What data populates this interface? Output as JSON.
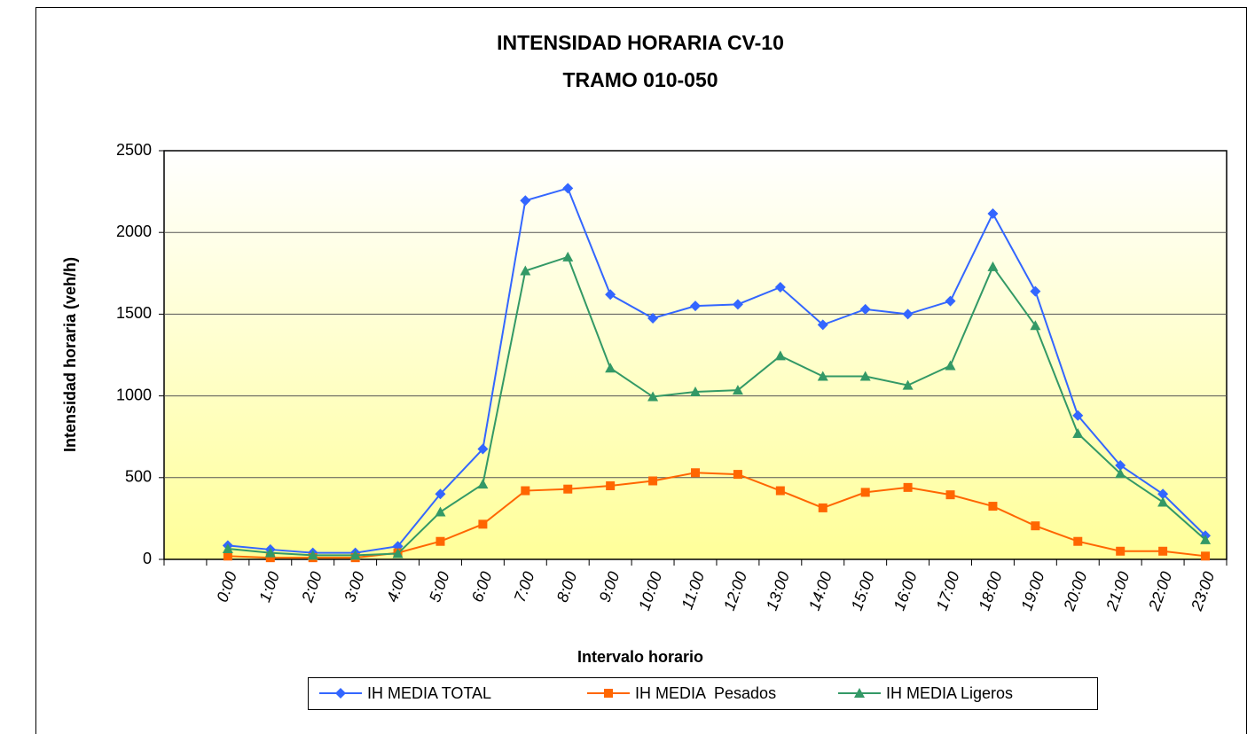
{
  "chart_data": {
    "type": "line",
    "title": [
      "INTENSIDAD HORARIA CV-10",
      "TRAMO 010-050"
    ],
    "x_label": "Intervalo horario",
    "y_label": "Intensidad horaria (veh/h)",
    "categories": [
      null,
      "0:00",
      "1:00",
      "2:00",
      "3:00",
      "4:00",
      "5:00",
      "6:00",
      "7:00",
      "8:00",
      "9:00",
      "10:00",
      "11:00",
      "12:00",
      "13:00",
      "14:00",
      "15:00",
      "16:00",
      "17:00",
      "18:00",
      "19:00",
      "20:00",
      "21:00",
      "22:00",
      "23:00"
    ],
    "series": [
      {
        "name": "IH MEDIA TOTAL",
        "color": "#3366ff",
        "marker": "diamond",
        "values": [
          null,
          85,
          60,
          40,
          40,
          80,
          400,
          675,
          2195,
          2270,
          1620,
          1475,
          1550,
          1560,
          1665,
          1435,
          1530,
          1500,
          1580,
          2115,
          1640,
          880,
          575,
          400,
          145
        ]
      },
      {
        "name": "IH MEDIA  Pesados",
        "color": "#ff6600",
        "marker": "square",
        "values": [
          null,
          20,
          10,
          10,
          10,
          40,
          110,
          215,
          420,
          430,
          450,
          480,
          530,
          520,
          420,
          315,
          410,
          440,
          395,
          325,
          205,
          110,
          50,
          50,
          20
        ]
      },
      {
        "name": "IH MEDIA Ligeros",
        "color": "#339966",
        "marker": "triangle",
        "values": [
          null,
          65,
          40,
          25,
          25,
          35,
          290,
          460,
          1765,
          1850,
          1170,
          995,
          1025,
          1035,
          1245,
          1120,
          1120,
          1065,
          1185,
          1790,
          1430,
          770,
          525,
          350,
          120
        ]
      }
    ],
    "ylim": [
      0,
      2500
    ],
    "yticks": [
      0,
      500,
      1000,
      1500,
      2000,
      2500
    ],
    "grid": true,
    "legend": "bottom"
  }
}
